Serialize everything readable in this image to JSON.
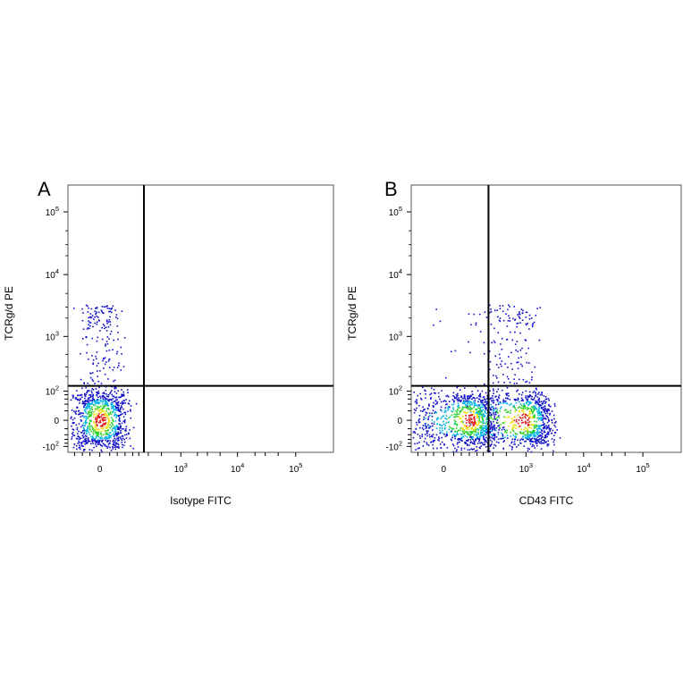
{
  "chart_data": [
    {
      "type": "scatter",
      "panel_label": "A",
      "xlabel": "Isotype FITC",
      "ylabel": "TCRg/d PE",
      "x_scale": "biexponential",
      "y_scale": "biexponential",
      "x_ticks": [
        {
          "label": "0",
          "value": 0
        },
        {
          "label": "10^3",
          "value": 1000
        },
        {
          "label": "10^4",
          "value": 10000
        },
        {
          "label": "10^5",
          "value": 100000
        }
      ],
      "y_ticks": [
        {
          "label": "10^5",
          "value": 100000
        },
        {
          "label": "10^4",
          "value": 10000
        },
        {
          "label": "10^3",
          "value": 1000
        },
        {
          "label": "10^2",
          "value": 100
        },
        {
          "label": "0",
          "value": 0
        },
        {
          "label": "-10^2",
          "value": -100
        }
      ],
      "quadrant_gate": {
        "x": 250,
        "y": 130
      },
      "populations": [
        {
          "name": "",
          "x_center": 0,
          "y_center": 0,
          "x_spread": 55,
          "y_spread": 55,
          "density": "high"
        },
        {
          "name": "",
          "x_center": 0,
          "y_center": 500,
          "x_spread": 60,
          "y_spread": 800,
          "density": "sparse"
        }
      ],
      "grid": false
    },
    {
      "type": "scatter",
      "panel_label": "B",
      "xlabel": "CD43 FITC",
      "ylabel": "TCRg/d PE",
      "x_scale": "biexponential",
      "y_scale": "biexponential",
      "x_ticks": [
        {
          "label": "0",
          "value": 0
        },
        {
          "label": "10^3",
          "value": 1000
        },
        {
          "label": "10^4",
          "value": 10000
        },
        {
          "label": "10^5",
          "value": 100000
        }
      ],
      "y_ticks": [
        {
          "label": "10^5",
          "value": 100000
        },
        {
          "label": "10^4",
          "value": 10000
        },
        {
          "label": "10^3",
          "value": 1000
        },
        {
          "label": "10^2",
          "value": 100
        },
        {
          "label": "0",
          "value": 0
        },
        {
          "label": "-10^2",
          "value": -100
        }
      ],
      "quadrant_gate": {
        "x": 250,
        "y": 130
      },
      "populations": [
        {
          "name": "",
          "x_center": 100,
          "y_center": 0,
          "x_spread": 120,
          "y_spread": 50,
          "density": "high"
        },
        {
          "name": "",
          "x_center": 900,
          "y_center": 0,
          "x_spread": 900,
          "y_spread": 50,
          "density": "high"
        },
        {
          "name": "",
          "x_center": 600,
          "y_center": 500,
          "x_spread": 700,
          "y_spread": 800,
          "density": "sparse"
        }
      ],
      "grid": false
    }
  ],
  "colors": {
    "density_low": "#1010c8",
    "density_mid_low": "#00b4e6",
    "density_mid": "#2cd02c",
    "density_mid_high": "#f0e010",
    "density_high": "#e01010",
    "axis": "#000000",
    "gate": "#000000"
  }
}
